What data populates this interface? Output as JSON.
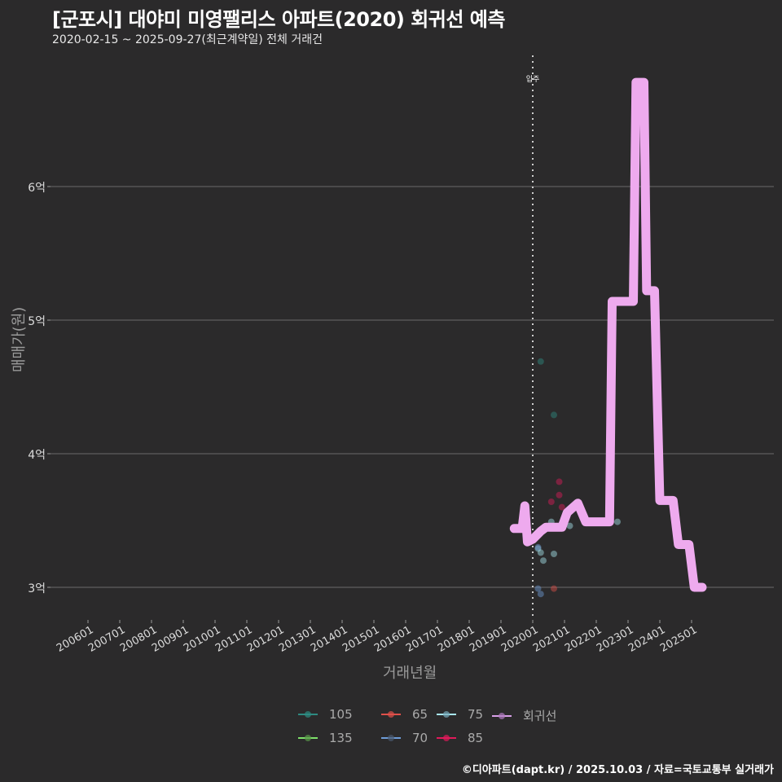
{
  "header": {
    "title": "[군포시] 대야미 미영팰리스 아파트(2020) 회귀선 예측",
    "subtitle": "2020-02-15 ~ 2025-09-27(최근계약일) 전체 거래건"
  },
  "axes": {
    "ylabel": "매매가(원)",
    "xlabel": "거래년월",
    "yticks": [
      "3억",
      "4억",
      "5억",
      "6억"
    ],
    "xticks": [
      "200601",
      "200701",
      "200801",
      "200901",
      "201001",
      "201101",
      "201201",
      "201301",
      "201401",
      "201501",
      "201601",
      "201701",
      "201801",
      "201901",
      "202001",
      "202101",
      "202201",
      "202301",
      "202401",
      "202501"
    ]
  },
  "annotation": {
    "label": "입주",
    "x": "202001"
  },
  "legend": {
    "items": [
      {
        "label": "105",
        "color": "#2e8b82"
      },
      {
        "label": "65",
        "color": "#e0504a"
      },
      {
        "label": "75",
        "color": "#a8e6ef"
      },
      {
        "label": "회귀선",
        "color": "#d9a0e8"
      },
      {
        "label": "135",
        "color": "#7ee06a"
      },
      {
        "label": "70",
        "color": "#6e9cd8"
      },
      {
        "label": "85",
        "color": "#e01a5a"
      }
    ]
  },
  "caption": "©디아파트(dapt.kr) / 2025.10.03 / 자료=국토교통부 실거래가",
  "colors": {
    "background": "#2b2a2b",
    "grid": "#6b6b6b",
    "regression": "#eeaaee"
  },
  "chart_data": {
    "type": "line",
    "title": "[군포시] 대야미 미영팰리스 아파트(2020) 회귀선 예측",
    "subtitle": "2020-02-15 ~ 2025-09-27(최근계약일) 전체 거래건",
    "xlabel": "거래년월",
    "ylabel": "매매가(원)",
    "ylim": [
      2.8,
      6.9
    ],
    "y_unit": "억",
    "grid": true,
    "legend_position": "bottom",
    "vertical_line": {
      "x": "2020-01",
      "label": "입주",
      "style": "dotted"
    },
    "series": [
      {
        "name": "회귀선",
        "kind": "line",
        "points": [
          {
            "x": "2019-06",
            "y": 3.44
          },
          {
            "x": "2019-09",
            "y": 3.44
          },
          {
            "x": "2019-10",
            "y": 3.61
          },
          {
            "x": "2019-11",
            "y": 3.34
          },
          {
            "x": "2020-01",
            "y": 3.36
          },
          {
            "x": "2020-04",
            "y": 3.42
          },
          {
            "x": "2020-06",
            "y": 3.45
          },
          {
            "x": "2020-12",
            "y": 3.45
          },
          {
            "x": "2021-02",
            "y": 3.56
          },
          {
            "x": "2021-06",
            "y": 3.63
          },
          {
            "x": "2021-09",
            "y": 3.49
          },
          {
            "x": "2022-06",
            "y": 3.49
          },
          {
            "x": "2022-07",
            "y": 5.14
          },
          {
            "x": "2023-03",
            "y": 5.14
          },
          {
            "x": "2023-04",
            "y": 6.78
          },
          {
            "x": "2023-07",
            "y": 6.78
          },
          {
            "x": "2023-08",
            "y": 5.22
          },
          {
            "x": "2023-11",
            "y": 5.22
          },
          {
            "x": "2024-01",
            "y": 3.65
          },
          {
            "x": "2024-06",
            "y": 3.65
          },
          {
            "x": "2024-08",
            "y": 3.32
          },
          {
            "x": "2024-12",
            "y": 3.32
          },
          {
            "x": "2025-02",
            "y": 3.0
          },
          {
            "x": "2025-05",
            "y": 3.0
          }
        ]
      },
      {
        "name": "105",
        "kind": "scatter",
        "points": [
          {
            "x": "2020-04",
            "y": 4.69
          },
          {
            "x": "2020-09",
            "y": 4.29
          }
        ]
      },
      {
        "name": "85",
        "kind": "scatter",
        "points": [
          {
            "x": "2020-11",
            "y": 3.79
          },
          {
            "x": "2020-11",
            "y": 3.69
          },
          {
            "x": "2020-08",
            "y": 3.64
          },
          {
            "x": "2020-12",
            "y": 3.6
          }
        ]
      },
      {
        "name": "75",
        "kind": "scatter",
        "points": [
          {
            "x": "2020-03",
            "y": 3.29
          },
          {
            "x": "2020-04",
            "y": 3.26
          },
          {
            "x": "2020-09",
            "y": 3.25
          },
          {
            "x": "2020-05",
            "y": 3.2
          },
          {
            "x": "2020-08",
            "y": 3.49
          },
          {
            "x": "2021-03",
            "y": 3.46
          },
          {
            "x": "2022-09",
            "y": 3.49
          }
        ]
      },
      {
        "name": "70",
        "kind": "scatter",
        "points": [
          {
            "x": "2020-03",
            "y": 3.3
          },
          {
            "x": "2020-03",
            "y": 2.99
          },
          {
            "x": "2020-04",
            "y": 2.95
          }
        ]
      },
      {
        "name": "65",
        "kind": "scatter",
        "points": [
          {
            "x": "2020-09",
            "y": 2.99
          }
        ]
      },
      {
        "name": "135",
        "kind": "scatter",
        "points": []
      }
    ]
  }
}
